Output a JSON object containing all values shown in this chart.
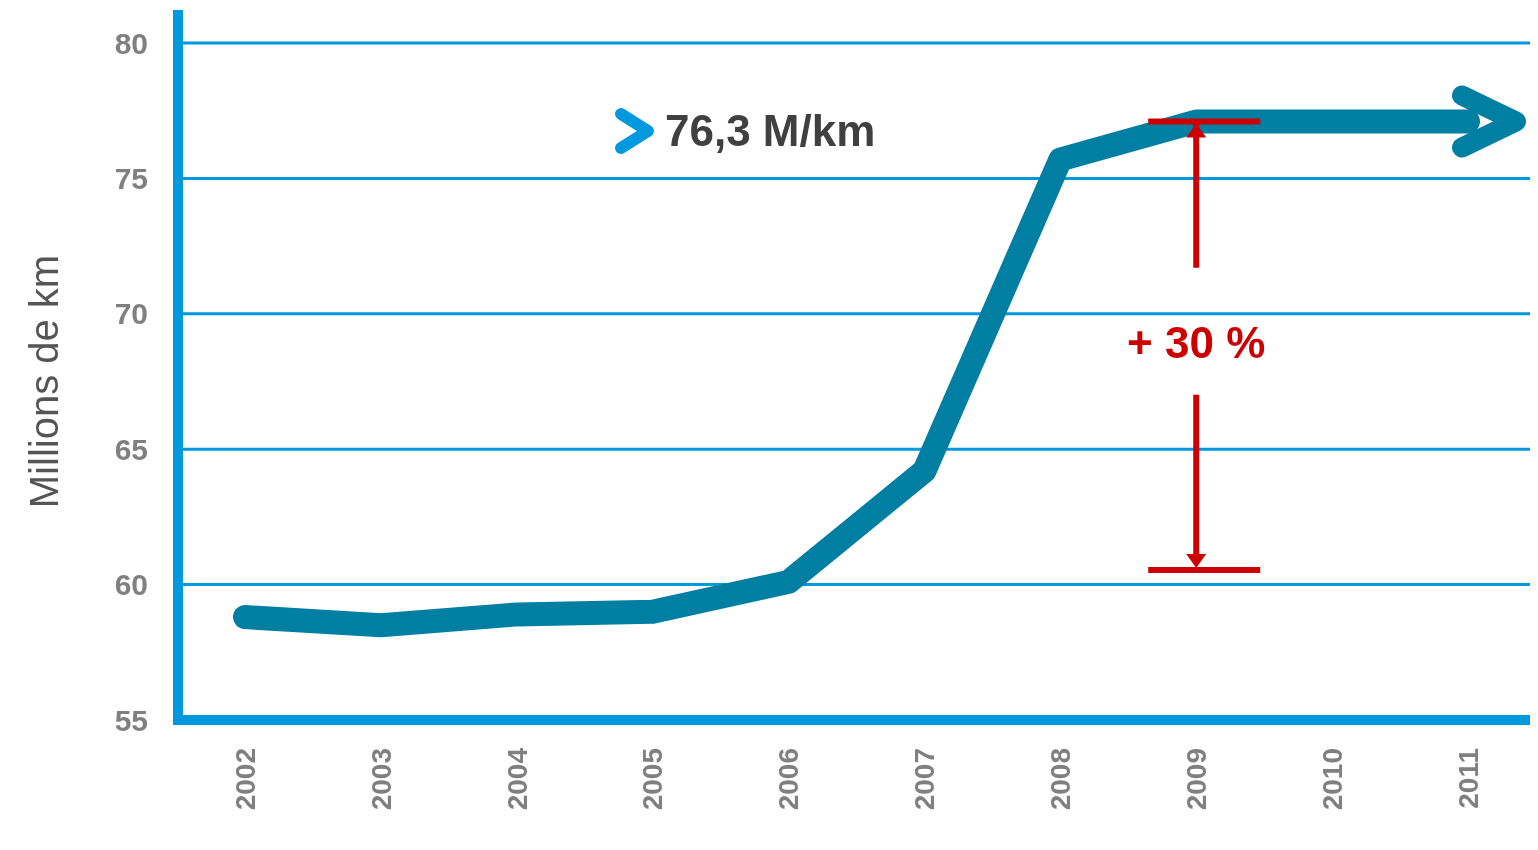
{
  "chart_data": {
    "type": "line",
    "ylabel": "Millions de km",
    "categories": [
      "2002",
      "2003",
      "2004",
      "2005",
      "2006",
      "2007",
      "2008",
      "2009",
      "2010",
      "2011"
    ],
    "series": [
      {
        "color": "#007fa3",
        "values": [
          58.8,
          58.5,
          58.9,
          59.0,
          60.1,
          64.2,
          75.7,
          77.1,
          77.1,
          77.1
        ]
      }
    ],
    "ylim": [
      55,
      80
    ],
    "yticks": [
      55,
      60,
      65,
      70,
      75,
      80
    ],
    "grid": "y",
    "marker": "none",
    "line_style": "solid",
    "annotations": [
      "76,3 M/km",
      {
        "text": "+ 30 %",
        "x": "2009",
        "y": 77.1
      }
    ]
  }
}
